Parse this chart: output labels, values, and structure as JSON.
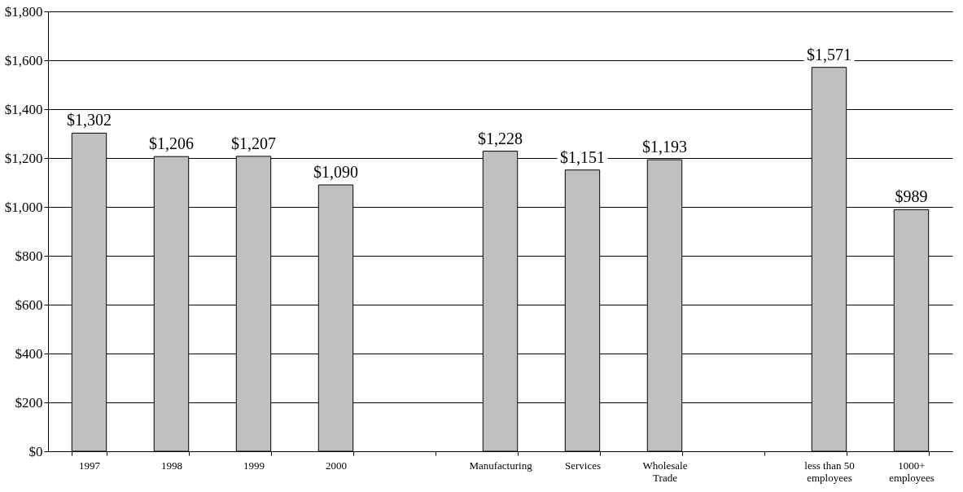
{
  "chart_data": {
    "type": "bar",
    "categories": [
      "1997",
      "1998",
      "1999",
      "2000",
      null,
      "Manufacturing",
      "Services",
      "Wholesale Trade",
      null,
      "less than 50 employees",
      "1000+ employees"
    ],
    "values": [
      1302,
      1206,
      1207,
      1090,
      null,
      1228,
      1151,
      1193,
      null,
      1571,
      989
    ],
    "color": "#c0c0c0",
    "ylim": [
      0,
      1800
    ],
    "yticks": [
      {
        "value": 0,
        "label": "$0"
      },
      {
        "value": 200,
        "label": "$200"
      },
      {
        "value": 400,
        "label": "$400"
      },
      {
        "value": 600,
        "label": "$600"
      },
      {
        "value": 800,
        "label": "$800"
      },
      {
        "value": 1000,
        "label": "$1,000"
      },
      {
        "value": 1200,
        "label": "$1,200"
      },
      {
        "value": 1400,
        "label": "$1,400"
      },
      {
        "value": 1600,
        "label": "$1,600"
      },
      {
        "value": 1800,
        "label": "$1,800"
      }
    ],
    "grid": "y",
    "value_labels": [
      "$1,302",
      "$1,206",
      "$1,207",
      "$1,090",
      null,
      "$1,228",
      "$1,151",
      "$1,193",
      null,
      "$1,571",
      "$989"
    ]
  }
}
